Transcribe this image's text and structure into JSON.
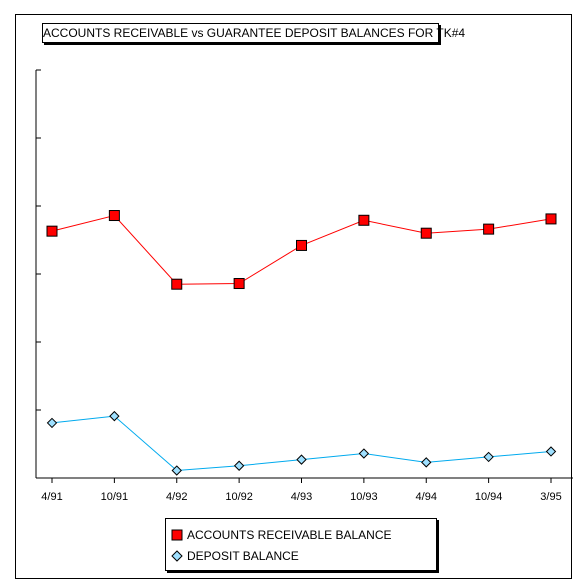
{
  "chart_data": {
    "type": "line",
    "title": "ACCOUNTS RECEIVABLE vs GUARANTEE DEPOSIT BALANCES FOR TK#4",
    "xlabel": "",
    "ylabel": "",
    "categories": [
      "4/91",
      "10/91",
      "4/92",
      "10/92",
      "4/93",
      "10/93",
      "4/94",
      "10/94",
      "3/95"
    ],
    "ylim": [
      0,
      6
    ],
    "y_tick_labels_shown": false,
    "grid": false,
    "legend_position": "bottom",
    "series": [
      {
        "name": "ACCOUNTS RECEIVABLE BALANCE",
        "color": "#ff0000",
        "marker": "square",
        "values": [
          3.63,
          3.86,
          2.85,
          2.86,
          3.42,
          3.79,
          3.6,
          3.66,
          3.81
        ]
      },
      {
        "name": "DEPOSIT BALANCE",
        "color": "#00aaee",
        "marker": "diamond",
        "values": [
          0.81,
          0.91,
          0.11,
          0.18,
          0.27,
          0.36,
          0.23,
          0.31,
          0.39
        ]
      }
    ]
  }
}
